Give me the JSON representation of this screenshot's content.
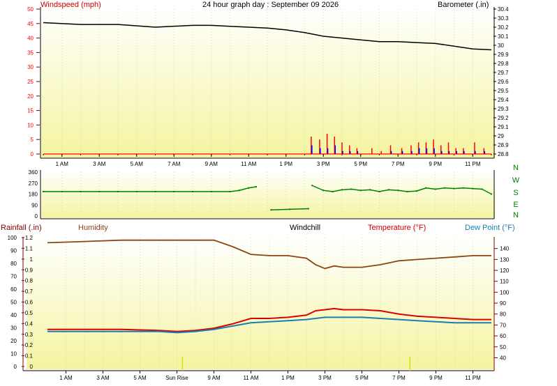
{
  "colors": {
    "panel_top": "#ffffff",
    "panel_bottom": "#f4f4a0",
    "grid": "#d8d8b0",
    "windspeed_red": "#ff0000",
    "windgust_blue": "#0000ff",
    "barometer": "#000000",
    "direction": "#008000",
    "humidity": "#8b4513",
    "temperature": "#dd0000",
    "dewpoint": "#1a7fb0",
    "rainfall_axis": "#800000",
    "dark_text": "#000000"
  },
  "header": {
    "title": "24 hour graph day : September 09 2026"
  },
  "chart_data": [
    {
      "type": "line",
      "panel": "wind_barometer",
      "labels": {
        "left": "Windspeed (mph)",
        "right": "Barometer (.in)"
      },
      "x_ticks": [
        "1 AM",
        "3 AM",
        "5 AM",
        "7 AM",
        "9 AM",
        "11 AM",
        "1 PM",
        "3 PM",
        "5 PM",
        "7 PM",
        "9 PM",
        "11 PM"
      ],
      "left_ticks": [
        "0",
        "5",
        "10",
        "15",
        "20",
        "25",
        "30",
        "35",
        "40",
        "45",
        "50"
      ],
      "left_range": [
        0,
        50
      ],
      "right_ticks": [
        "28.8",
        "28.9",
        "29",
        "29.1",
        "29.2",
        "29.3",
        "29.4",
        "29.5",
        "29.6",
        "29.7",
        "29.8",
        "29.9",
        "30",
        "30.1",
        "30.2",
        "30.3",
        "30.4"
      ],
      "right_range": [
        28.8,
        30.4
      ],
      "barometer_x": [
        0,
        2,
        4,
        6,
        8,
        9,
        10,
        11,
        12,
        13,
        14,
        15,
        16,
        17,
        18,
        19,
        20,
        21,
        22,
        23,
        24
      ],
      "barometer_values": [
        30.25,
        30.23,
        30.23,
        30.2,
        30.22,
        30.22,
        30.21,
        30.2,
        30.19,
        30.17,
        30.14,
        30.1,
        30.08,
        30.06,
        30.04,
        30.04,
        30.03,
        30.02,
        29.99,
        29.96,
        29.95
      ],
      "wind_x": [
        14.35,
        14.8,
        15.2,
        15.6,
        16.0,
        16.4,
        16.8,
        17.6,
        18.1,
        18.6,
        19.2,
        19.7,
        20.1,
        20.5,
        20.9,
        21.3,
        21.7,
        22.1,
        22.5,
        23.1,
        23.6
      ],
      "windspeed_values": [
        6,
        5,
        7,
        6,
        4,
        3,
        2,
        2,
        1,
        3,
        2,
        3,
        4,
        4,
        5,
        3,
        4,
        2,
        2,
        4,
        2
      ],
      "windgust_values": [
        3,
        2,
        2,
        3,
        1,
        1,
        1,
        0,
        0,
        1,
        1,
        1,
        2,
        2,
        2,
        1,
        1,
        1,
        1,
        1,
        1
      ]
    },
    {
      "type": "scatter",
      "panel": "direction",
      "left_ticks": [
        "0",
        "90",
        "180",
        "270",
        "360"
      ],
      "left_range": [
        0,
        360
      ],
      "compass_labels": [
        "N",
        "W",
        "S",
        "E",
        "N"
      ],
      "x": [
        0,
        1,
        2,
        3,
        4,
        5,
        6,
        7,
        8,
        9,
        10,
        10.5,
        11.0,
        11.4,
        12.2,
        13.2,
        14.2,
        14.4,
        15.0,
        15.5,
        16.0,
        16.5,
        17.0,
        17.5,
        18.0,
        18.5,
        19.0,
        19.5,
        20.0,
        20.5,
        21.0,
        21.5,
        22.0,
        22.5,
        23.0,
        23.5,
        24.0
      ],
      "values": [
        200,
        200,
        200,
        200,
        200,
        200,
        200,
        200,
        200,
        200,
        200,
        210,
        230,
        240,
        50,
        55,
        60,
        250,
        210,
        200,
        215,
        220,
        210,
        215,
        200,
        215,
        210,
        200,
        205,
        230,
        220,
        230,
        225,
        230,
        225,
        220,
        180
      ]
    },
    {
      "type": "line",
      "panel": "temperature_humidity",
      "labels": {
        "rainfall": "Rainfall (.in)",
        "humidity": "Humidity",
        "windchill": "Windchill",
        "temperature": "Temperature (°F)",
        "dewpoint": "Dew Point (°F)"
      },
      "x_ticks": [
        "1 AM",
        "3 AM",
        "5 AM",
        "Sun Rise",
        "9 AM",
        "11 AM",
        "1 PM",
        "3 PM",
        "5 PM",
        "7 PM",
        "9 PM",
        "11 PM"
      ],
      "humidity_ticks": [
        "0",
        "10",
        "20",
        "30",
        "40",
        "50",
        "60",
        "70",
        "80",
        "90",
        "100"
      ],
      "humidity_range": [
        0,
        100
      ],
      "rainfall_ticks": [
        "0",
        "0.1",
        "0.2",
        "0.3",
        "0.4",
        "0.5",
        "0.6",
        "0.7",
        "0.8",
        "0.9",
        "1",
        "1.1",
        "1.2"
      ],
      "rainfall_range": [
        0,
        1.2
      ],
      "temperature_ticks": [
        "40",
        "50",
        "60",
        "70",
        "80",
        "90",
        "100",
        "110",
        "120",
        "130",
        "140"
      ],
      "temperature_range": [
        32,
        150
      ],
      "x": [
        0,
        2,
        4,
        6,
        7,
        8,
        9,
        10,
        11,
        12,
        13,
        14,
        14.5,
        15,
        15.5,
        16,
        17,
        18,
        19,
        20,
        21,
        22,
        23,
        24
      ],
      "humidity_values": [
        96,
        97,
        98,
        98,
        98,
        98,
        98,
        93,
        87,
        86,
        86,
        84,
        79,
        76,
        78,
        77,
        77,
        79,
        82,
        83,
        84,
        85,
        86,
        86
      ],
      "temperature_values": [
        66,
        66,
        66,
        65,
        64,
        65,
        67,
        71,
        76,
        76,
        77,
        79,
        83,
        84,
        85,
        84,
        84,
        83,
        80,
        78,
        77,
        76,
        75,
        75
      ],
      "dewpoint_values": [
        64,
        64,
        64,
        64,
        63,
        64,
        66,
        69,
        72,
        73,
        74,
        75,
        76,
        77,
        77,
        77,
        77,
        76,
        75,
        74,
        73,
        72,
        72,
        72
      ],
      "sunrise_hour": 7.3,
      "sunset_hour": 19.6
    }
  ]
}
